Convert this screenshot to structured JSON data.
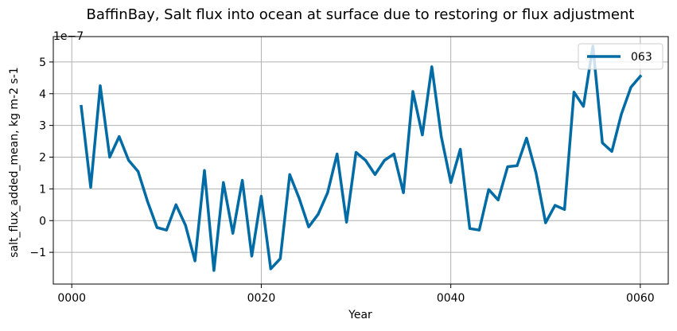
{
  "chart_data": {
    "type": "line",
    "title": "BaffinBay, Salt flux into ocean at surface due to restoring or flux adjustment",
    "xlabel": "Year",
    "ylabel": "salt_flux_added_mean, kg m-2 s-1",
    "y_offset_label": "1e−7",
    "y_scale": 1e-07,
    "xlim": [
      -1.95,
      62.95
    ],
    "ylim": [
      -2.0,
      5.8
    ],
    "x_ticks": [
      0,
      20,
      40,
      60
    ],
    "x_tick_labels": [
      "0000",
      "0020",
      "0040",
      "0060"
    ],
    "y_ticks": [
      -1,
      0,
      1,
      2,
      3,
      4,
      5
    ],
    "y_tick_labels": [
      "−1",
      "0",
      "1",
      "2",
      "3",
      "4",
      "5"
    ],
    "grid": true,
    "legend_position": "upper right",
    "colors": {
      "series": "#006ba4",
      "grid": "#b0b0b0"
    },
    "series": [
      {
        "name": "063",
        "x": [
          1,
          2,
          3,
          4,
          5,
          6,
          7,
          8,
          9,
          10,
          11,
          12,
          13,
          14,
          15,
          16,
          17,
          18,
          19,
          20,
          21,
          22,
          23,
          24,
          25,
          26,
          27,
          28,
          29,
          30,
          31,
          32,
          33,
          34,
          35,
          36,
          37,
          38,
          39,
          40,
          41,
          42,
          43,
          44,
          45,
          46,
          47,
          48,
          49,
          50,
          51,
          52,
          53,
          54,
          55,
          56,
          57,
          58,
          59,
          60
        ],
        "values": [
          3.6,
          1.05,
          4.25,
          2.0,
          2.65,
          1.9,
          1.55,
          0.6,
          -0.22,
          -0.3,
          0.5,
          -0.15,
          -1.27,
          1.58,
          -1.57,
          1.2,
          -0.4,
          1.27,
          -1.12,
          0.77,
          -1.52,
          -1.2,
          1.45,
          0.7,
          -0.2,
          0.2,
          0.88,
          2.1,
          -0.05,
          2.15,
          1.9,
          1.45,
          1.9,
          2.1,
          0.88,
          4.07,
          2.7,
          4.85,
          2.65,
          1.2,
          2.25,
          -0.25,
          -0.3,
          0.98,
          0.65,
          1.7,
          1.73,
          2.6,
          1.5,
          -0.07,
          0.48,
          0.35,
          4.05,
          3.6,
          5.5,
          2.45,
          2.18,
          3.35,
          4.2,
          4.55
        ]
      }
    ]
  }
}
